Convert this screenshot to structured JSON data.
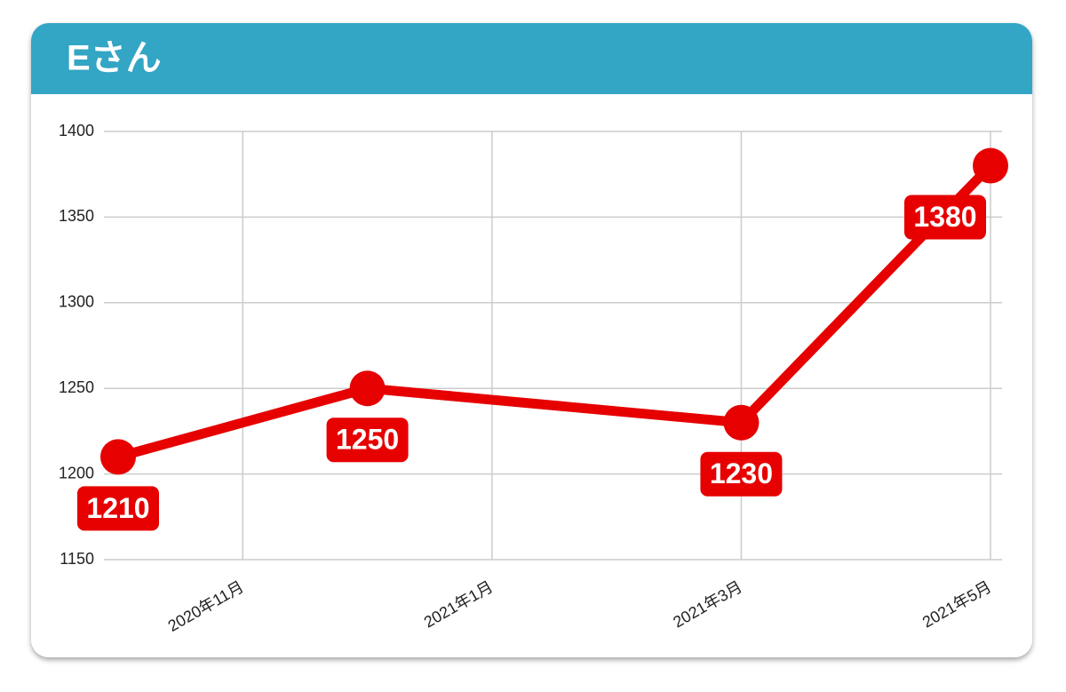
{
  "chart_data": {
    "type": "line",
    "title": "Eさん",
    "x": [
      "2020-10",
      "2020-12",
      "2021-03",
      "2021-05"
    ],
    "series": [
      {
        "name": "Eさん",
        "color": "#e60000",
        "values": [
          1210,
          1250,
          1230,
          1380
        ]
      }
    ],
    "xlim": [
      "2020-10",
      "2021-05"
    ],
    "xticks": [
      {
        "value": "2020-11",
        "label": "2020年11月"
      },
      {
        "value": "2021-01",
        "label": "2021年1月"
      },
      {
        "value": "2021-03",
        "label": "2021年3月"
      },
      {
        "value": "2021-05",
        "label": "2021年5月"
      }
    ],
    "ylim": [
      1150,
      1400
    ],
    "yticks": [
      1150,
      1200,
      1250,
      1300,
      1350,
      1400
    ],
    "grid": true,
    "header_color": "#33a5c5"
  }
}
